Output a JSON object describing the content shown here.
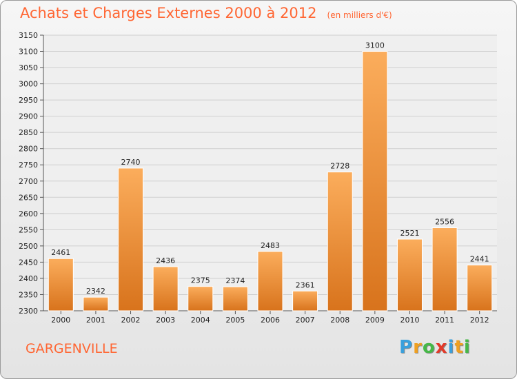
{
  "header": {
    "title": "Achats et Charges Externes 2000 à 2012",
    "subtitle": "(en milliers d'€)"
  },
  "commune": "GARGENVILLE",
  "brand": {
    "letters": [
      {
        "char": "P",
        "color": "#3aa0dc"
      },
      {
        "char": "r",
        "color": "#f0a020"
      },
      {
        "char": "o",
        "color": "#46b848"
      },
      {
        "char": "x",
        "color": "#e23a2a"
      },
      {
        "char": "i",
        "color": "#3aa0dc"
      },
      {
        "char": "t",
        "color": "#f0a020"
      },
      {
        "char": "i",
        "color": "#46b848"
      }
    ]
  },
  "colors": {
    "bar_light": "#fbad5c",
    "bar_dark": "#d8731c",
    "grid": "#cfcfcf",
    "accent": "#ff6633"
  },
  "chart_data": {
    "type": "bar",
    "title": "Achats et Charges Externes 2000 à 2012",
    "subtitle": "(en milliers d'€)",
    "xlabel": "",
    "ylabel": "",
    "categories": [
      "2000",
      "2001",
      "2002",
      "2003",
      "2004",
      "2005",
      "2006",
      "2007",
      "2008",
      "2009",
      "2010",
      "2011",
      "2012"
    ],
    "values": [
      2461,
      2342,
      2740,
      2436,
      2375,
      2374,
      2483,
      2361,
      2728,
      3100,
      2521,
      2556,
      2441
    ],
    "ylim": [
      2300,
      3150
    ],
    "ytick_step": 50,
    "grid": true,
    "legend": "none"
  }
}
